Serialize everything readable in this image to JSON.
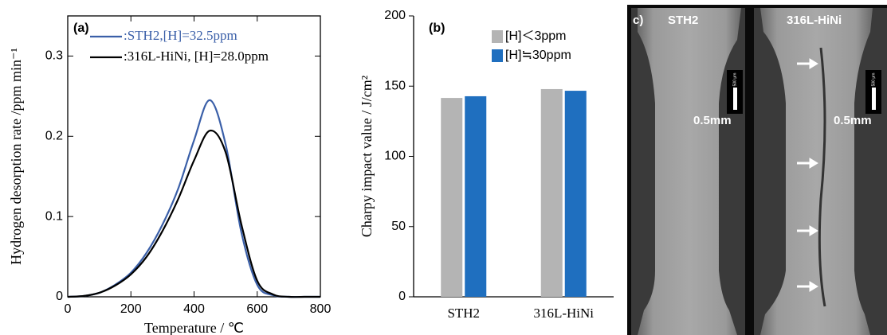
{
  "chart_data": [
    {
      "type": "line",
      "panel": "(a)",
      "x_label": "Temperature / ℃",
      "y_label": "Hydrogen desorption rate /ppm min⁻¹",
      "x": [
        0,
        50,
        100,
        150,
        200,
        250,
        300,
        350,
        400,
        450,
        500,
        550,
        600,
        650,
        700,
        750,
        800
      ],
      "series": [
        {
          "name": ":STH2,[H]=32.5ppm",
          "color": "#3a5fa8",
          "values": [
            0,
            0.001,
            0.005,
            0.015,
            0.03,
            0.055,
            0.09,
            0.135,
            0.195,
            0.245,
            0.19,
            0.08,
            0.015,
            0.002,
            0,
            0,
            0
          ]
        },
        {
          "name": ":316L-HiNi, [H]=28.0ppm",
          "color": "#000000",
          "values": [
            0,
            0.001,
            0.005,
            0.014,
            0.028,
            0.05,
            0.082,
            0.122,
            0.17,
            0.207,
            0.18,
            0.09,
            0.02,
            0.003,
            0,
            0,
            0
          ]
        }
      ],
      "xlim": [
        0,
        800
      ],
      "xticks": [
        0,
        200,
        400,
        600,
        800
      ],
      "ylim": [
        0,
        0.35
      ],
      "yticks": [
        0,
        0.1,
        0.2,
        0.3
      ],
      "grid": false,
      "legend": "upper left"
    },
    {
      "type": "bar",
      "panel": "(b)",
      "y_label": "Charpy impact value / J/cm²",
      "categories": [
        "STH2",
        "316L-HiNi"
      ],
      "series": [
        {
          "name": "[H]＜3ppm",
          "color": "#b4b4b4",
          "values": [
            141.6,
            147.9
          ]
        },
        {
          "name": "[H]≒30ppm",
          "color": "#1f6fbf",
          "values": [
            142.8,
            146.7
          ]
        }
      ],
      "ylim": [
        0,
        200
      ],
      "yticks": [
        0,
        50,
        100,
        150,
        200
      ],
      "grid": false,
      "legend": "upper right"
    }
  ],
  "photo_panel": {
    "label": "c)",
    "specimens": [
      {
        "name": "STH2",
        "scale": "0.5mm",
        "scale_bar": "500 μm"
      },
      {
        "name": "316L-HiNi",
        "scale": "0.5mm",
        "scale_bar": "500 μm"
      }
    ]
  }
}
